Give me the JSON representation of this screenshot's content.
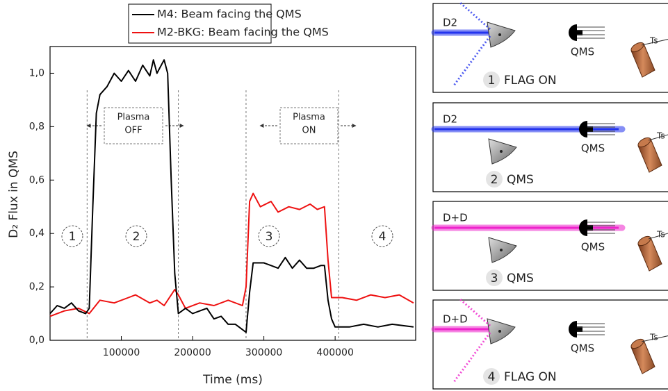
{
  "chart_data": {
    "type": "line",
    "xlabel": "Time (ms)",
    "ylabel": "D₂ Flux in QMS",
    "xlim": [
      0,
      513000
    ],
    "ylim": [
      0,
      1.1
    ],
    "xticks": [
      100000,
      200000,
      300000,
      400000
    ],
    "yticks": [
      {
        "value": 0,
        "label": "0,0"
      },
      {
        "value": 0.2,
        "label": "0,2"
      },
      {
        "value": 0.4,
        "label": "0,4"
      },
      {
        "value": 0.6,
        "label": "0,6"
      },
      {
        "value": 0.8,
        "label": "0,8"
      },
      {
        "value": 1.0,
        "label": "1,0"
      }
    ],
    "series": [
      {
        "name": "M4: Beam facing the QMS",
        "color": "#000000",
        "x": [
          0,
          10000,
          20000,
          30000,
          40000,
          50000,
          55000,
          60000,
          65000,
          70000,
          80000,
          90000,
          100000,
          110000,
          120000,
          130000,
          140000,
          145000,
          150000,
          160000,
          165000,
          170000,
          175000,
          180000,
          190000,
          200000,
          210000,
          220000,
          230000,
          240000,
          250000,
          260000,
          270000,
          275000,
          280000,
          285000,
          300000,
          310000,
          320000,
          330000,
          340000,
          350000,
          360000,
          370000,
          380000,
          385000,
          390000,
          395000,
          400000,
          420000,
          440000,
          460000,
          480000,
          510000
        ],
        "values": [
          0.1,
          0.13,
          0.12,
          0.14,
          0.11,
          0.1,
          0.12,
          0.5,
          0.85,
          0.92,
          0.95,
          1.0,
          0.97,
          1.01,
          0.97,
          1.03,
          0.99,
          1.05,
          1.0,
          1.05,
          1.0,
          0.6,
          0.25,
          0.1,
          0.12,
          0.1,
          0.11,
          0.12,
          0.08,
          0.09,
          0.06,
          0.06,
          0.04,
          0.03,
          0.18,
          0.29,
          0.29,
          0.28,
          0.27,
          0.31,
          0.27,
          0.3,
          0.27,
          0.27,
          0.28,
          0.28,
          0.15,
          0.08,
          0.05,
          0.05,
          0.06,
          0.05,
          0.06,
          0.05
        ]
      },
      {
        "name": "M2-BKG: Beam facing the QMS",
        "color": "#ee1111",
        "x": [
          0,
          20000,
          40000,
          55000,
          70000,
          90000,
          110000,
          120000,
          140000,
          150000,
          160000,
          175000,
          180000,
          190000,
          210000,
          230000,
          250000,
          270000,
          275000,
          280000,
          285000,
          295000,
          310000,
          320000,
          335000,
          350000,
          365000,
          375000,
          385000,
          390000,
          395000,
          410000,
          430000,
          450000,
          470000,
          490000,
          510000
        ],
        "values": [
          0.09,
          0.11,
          0.12,
          0.1,
          0.15,
          0.14,
          0.16,
          0.17,
          0.14,
          0.15,
          0.13,
          0.19,
          0.17,
          0.12,
          0.14,
          0.13,
          0.15,
          0.13,
          0.2,
          0.52,
          0.55,
          0.5,
          0.52,
          0.48,
          0.5,
          0.49,
          0.51,
          0.49,
          0.5,
          0.3,
          0.16,
          0.16,
          0.15,
          0.17,
          0.16,
          0.17,
          0.14
        ]
      }
    ],
    "vlines": [
      52000,
      180000,
      275000,
      405000
    ],
    "regions": [
      "1",
      "2",
      "3",
      "4"
    ],
    "plasma_boxes": [
      [
        "Plasma",
        "OFF"
      ],
      [
        "Plasma",
        "ON"
      ]
    ],
    "panels": [
      {
        "beam": "D2",
        "detector": "QMS",
        "target": "Ts",
        "step": "1",
        "state": "FLAG ON"
      },
      {
        "beam": "D2",
        "detector": "QMS",
        "target": "Ts",
        "step": "2",
        "state": "QMS"
      },
      {
        "beam": "D+D",
        "detector": "QMS",
        "target": "Ts",
        "step": "3",
        "state": "QMS"
      },
      {
        "beam": "D+D",
        "detector": "QMS",
        "target": "Ts",
        "step": "4",
        "state": "FLAG ON"
      }
    ]
  }
}
